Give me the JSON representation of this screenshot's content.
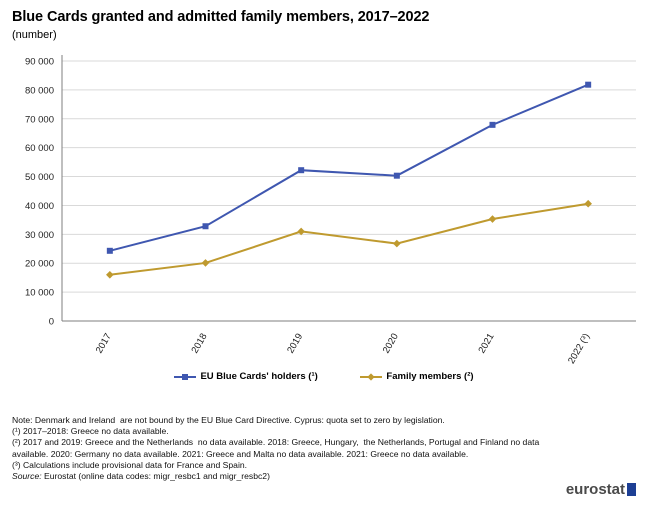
{
  "title": "Blue Cards granted and admitted family members, 2017–2022",
  "subtitle": "(number)",
  "colors": {
    "blue_card": "#3f57b0",
    "family": "#bf9a2f",
    "grid": "#d9d9d9",
    "axis": "#7f7f7f"
  },
  "chart_data": {
    "type": "line",
    "categories": [
      "2017",
      "2018",
      "2019",
      "2020",
      "2021",
      "2022 (³)"
    ],
    "series": [
      {
        "name": "EU Blue Cards' holders (¹)",
        "values": [
          24300,
          32800,
          52200,
          50300,
          67900,
          81800
        ],
        "color": "#3f57b0",
        "marker": "square"
      },
      {
        "name": "Family members (²)",
        "values": [
          16000,
          20100,
          31000,
          26800,
          35300,
          40600
        ],
        "color": "#bf9a2f",
        "marker": "diamond"
      }
    ],
    "ylim": [
      0,
      90000
    ],
    "yticks": [
      "0",
      "10 000",
      "20 000",
      "30 000",
      "40 000",
      "50 000",
      "60 000",
      "70 000",
      "80 000",
      "90 000"
    ],
    "grid": true,
    "legend_position": "bottom"
  },
  "notes": {
    "note": "Note: Denmark and Ireland  are not bound by the EU Blue Card Directive. Cyprus: quota set to zero by legislation.",
    "fn1": "(¹) 2017–2018: Greece no data available.",
    "fn2": "(²) 2017 and 2019: Greece and the Netherlands  no data available. 2018: Greece, Hungary,  the Netherlands, Portugal and Finland no data available. 2020: Germany no data available. 2021: Greece and Malta no data available. 2021: Greece no data available.",
    "fn3": "(³) Calculations include provisional data for France and Spain.",
    "source_label": "Source:",
    "source_text": " Eurostat (online data codes: migr_resbc1 and migr_resbc2)"
  },
  "logo": "eurostat"
}
